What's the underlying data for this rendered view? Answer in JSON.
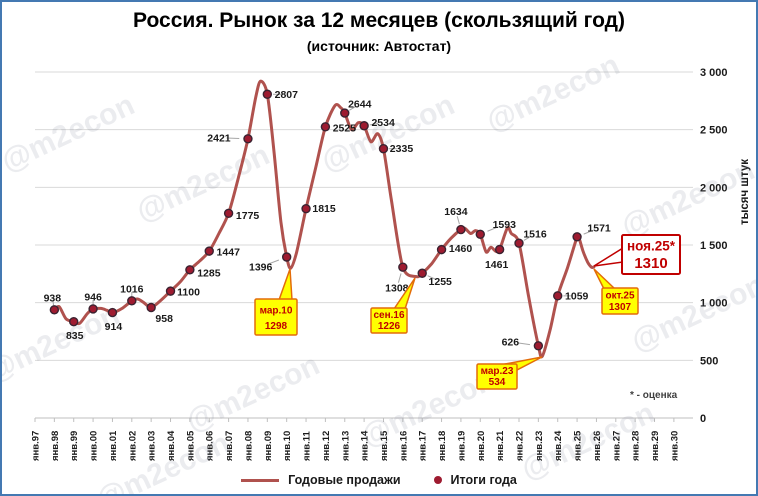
{
  "title": "Россия. Рынок за 12 месяцев (скользящий год)",
  "subtitle": "(источник: Автостат)",
  "footnote": "* - оценка",
  "watermark_text": "@m2econ",
  "legend": {
    "line_label": "Годовые продажи",
    "dot_label": "Итоги года"
  },
  "y_axis": {
    "title": "тысяч штук",
    "ticks": [
      "3 000",
      "2 500",
      "2 000",
      "1 500",
      "1 000",
      "500",
      "0"
    ],
    "min": 0,
    "max": 3000,
    "step": 500
  },
  "x_axis": {
    "labels": [
      "янв.97",
      "янв.98",
      "янв.99",
      "янв.00",
      "янв.01",
      "янв.02",
      "янв.03",
      "янв.04",
      "янв.05",
      "янв.06",
      "янв.07",
      "янв.08",
      "янв.09",
      "янв.10",
      "янв.11",
      "янв.12",
      "янв.13",
      "янв.14",
      "янв.15",
      "янв.16",
      "янв.17",
      "янв.18",
      "янв.19",
      "янв.20",
      "янв.21",
      "янв.22",
      "янв.23",
      "янв.24",
      "янв.25",
      "янв.26",
      "янв.27",
      "янв.28",
      "янв.29",
      "янв.30"
    ]
  },
  "chart_data": {
    "type": "line",
    "title": "Россия. Рынок за 12 месяцев (скользящий год)",
    "ylabel": "тысяч штук",
    "ylim": [
      0,
      3000
    ],
    "grid": true,
    "legend_position": "bottom",
    "series": [
      {
        "name": "Годовые продажи",
        "x": [
          1998.0,
          1998.25,
          1998.6,
          1999.0,
          1999.3,
          1999.7,
          2000.0,
          2000.4,
          2000.7,
          2001.0,
          2001.5,
          2002.0,
          2002.3,
          2002.6,
          2003.0,
          2003.5,
          2004.0,
          2004.5,
          2005.0,
          2005.5,
          2006.0,
          2006.5,
          2007.0,
          2007.5,
          2008.0,
          2008.4,
          2008.65,
          2009.0,
          2009.35,
          2009.7,
          2010.0,
          2010.2,
          2010.5,
          2011.0,
          2011.5,
          2012.0,
          2012.5,
          2012.8,
          2013.0,
          2013.35,
          2013.7,
          2014.0,
          2014.35,
          2014.7,
          2015.0,
          2015.4,
          2016.0,
          2016.7,
          2017.0,
          2017.5,
          2018.0,
          2018.5,
          2019.0,
          2019.2,
          2019.5,
          2019.75,
          2020.0,
          2020.3,
          2020.55,
          2020.8,
          2021.0,
          2021.4,
          2021.6,
          2022.0,
          2022.5,
          2023.0,
          2023.2,
          2023.6,
          2024.0,
          2024.5,
          2025.0,
          2025.07,
          2025.3,
          2025.55,
          2025.75,
          2025.87
        ],
        "values": [
          938,
          965,
          860,
          835,
          820,
          905,
          946,
          950,
          935,
          914,
          950,
          1016,
          1032,
          1003,
          958,
          1020,
          1100,
          1180,
          1285,
          1360,
          1447,
          1600,
          1775,
          2080,
          2421,
          2780,
          2920,
          2807,
          2300,
          1700,
          1396,
          1298,
          1430,
          1815,
          2170,
          2525,
          2710,
          2690,
          2644,
          2500,
          2560,
          2534,
          2395,
          2465,
          2335,
          1900,
          1308,
          1226,
          1255,
          1340,
          1460,
          1560,
          1634,
          1645,
          1600,
          1625,
          1593,
          1440,
          1480,
          1445,
          1461,
          1648,
          1600,
          1516,
          1050,
          626,
          534,
          760,
          1059,
          1300,
          1571,
          1578,
          1450,
          1350,
          1307,
          1310
        ]
      },
      {
        "name": "Итоги года",
        "x": [
          "янв.98",
          "янв.99",
          "янв.00",
          "янв.01",
          "янв.02",
          "янв.03",
          "янв.04",
          "янв.05",
          "янв.06",
          "янв.07",
          "янв.08",
          "янв.09",
          "янв.10",
          "янв.11",
          "янв.12",
          "янв.13",
          "янв.14",
          "янв.15",
          "янв.16",
          "янв.17",
          "янв.18",
          "янв.19",
          "янв.20",
          "янв.21",
          "янв.22",
          "янв.23",
          "янв.24",
          "янв.25"
        ],
        "years": [
          1998,
          1999,
          2000,
          2001,
          2002,
          2003,
          2004,
          2005,
          2006,
          2007,
          2008,
          2009,
          2010,
          2011,
          2012,
          2013,
          2014,
          2015,
          2016,
          2017,
          2018,
          2019,
          2020,
          2021,
          2022,
          2023,
          2024,
          2025
        ],
        "values": [
          938,
          835,
          946,
          914,
          1016,
          958,
          1100,
          1285,
          1447,
          1775,
          2421,
          2807,
          1396,
          1815,
          2525,
          2644,
          2534,
          2335,
          1308,
          1255,
          1460,
          1634,
          1593,
          1461,
          1516,
          626,
          1059,
          1571
        ]
      }
    ],
    "annotations": [
      {
        "label": "мар.10",
        "value": "1298",
        "x": 2010.2,
        "style": "yellow"
      },
      {
        "label": "сен.16",
        "value": "1226",
        "x": 2016.7,
        "style": "yellow"
      },
      {
        "label": "мар.23",
        "value": "534",
        "x": 2023.2,
        "style": "yellow"
      },
      {
        "label": "окт.25",
        "value": "1307",
        "x": 2025.75,
        "style": "yellow"
      },
      {
        "label": "ноя.25*",
        "value": "1310",
        "x": 2025.87,
        "style": "white"
      }
    ]
  },
  "colors": {
    "line": "#b0524e",
    "marker": "#9e1b30",
    "marker_stroke": "#3a2230",
    "grid": "#d9d9d9",
    "axis": "#bfbfbf",
    "label": "#1a1a1a",
    "leader": "#a6a6a6",
    "callout_bg": "#ffff00",
    "callout_border": "#e36c0a",
    "callout_text": "#c00000",
    "est_border": "#c00000",
    "est_bg": "#ffffff",
    "frame_border": "#4479b2",
    "watermark": "rgba(110,120,140,0.14)"
  }
}
